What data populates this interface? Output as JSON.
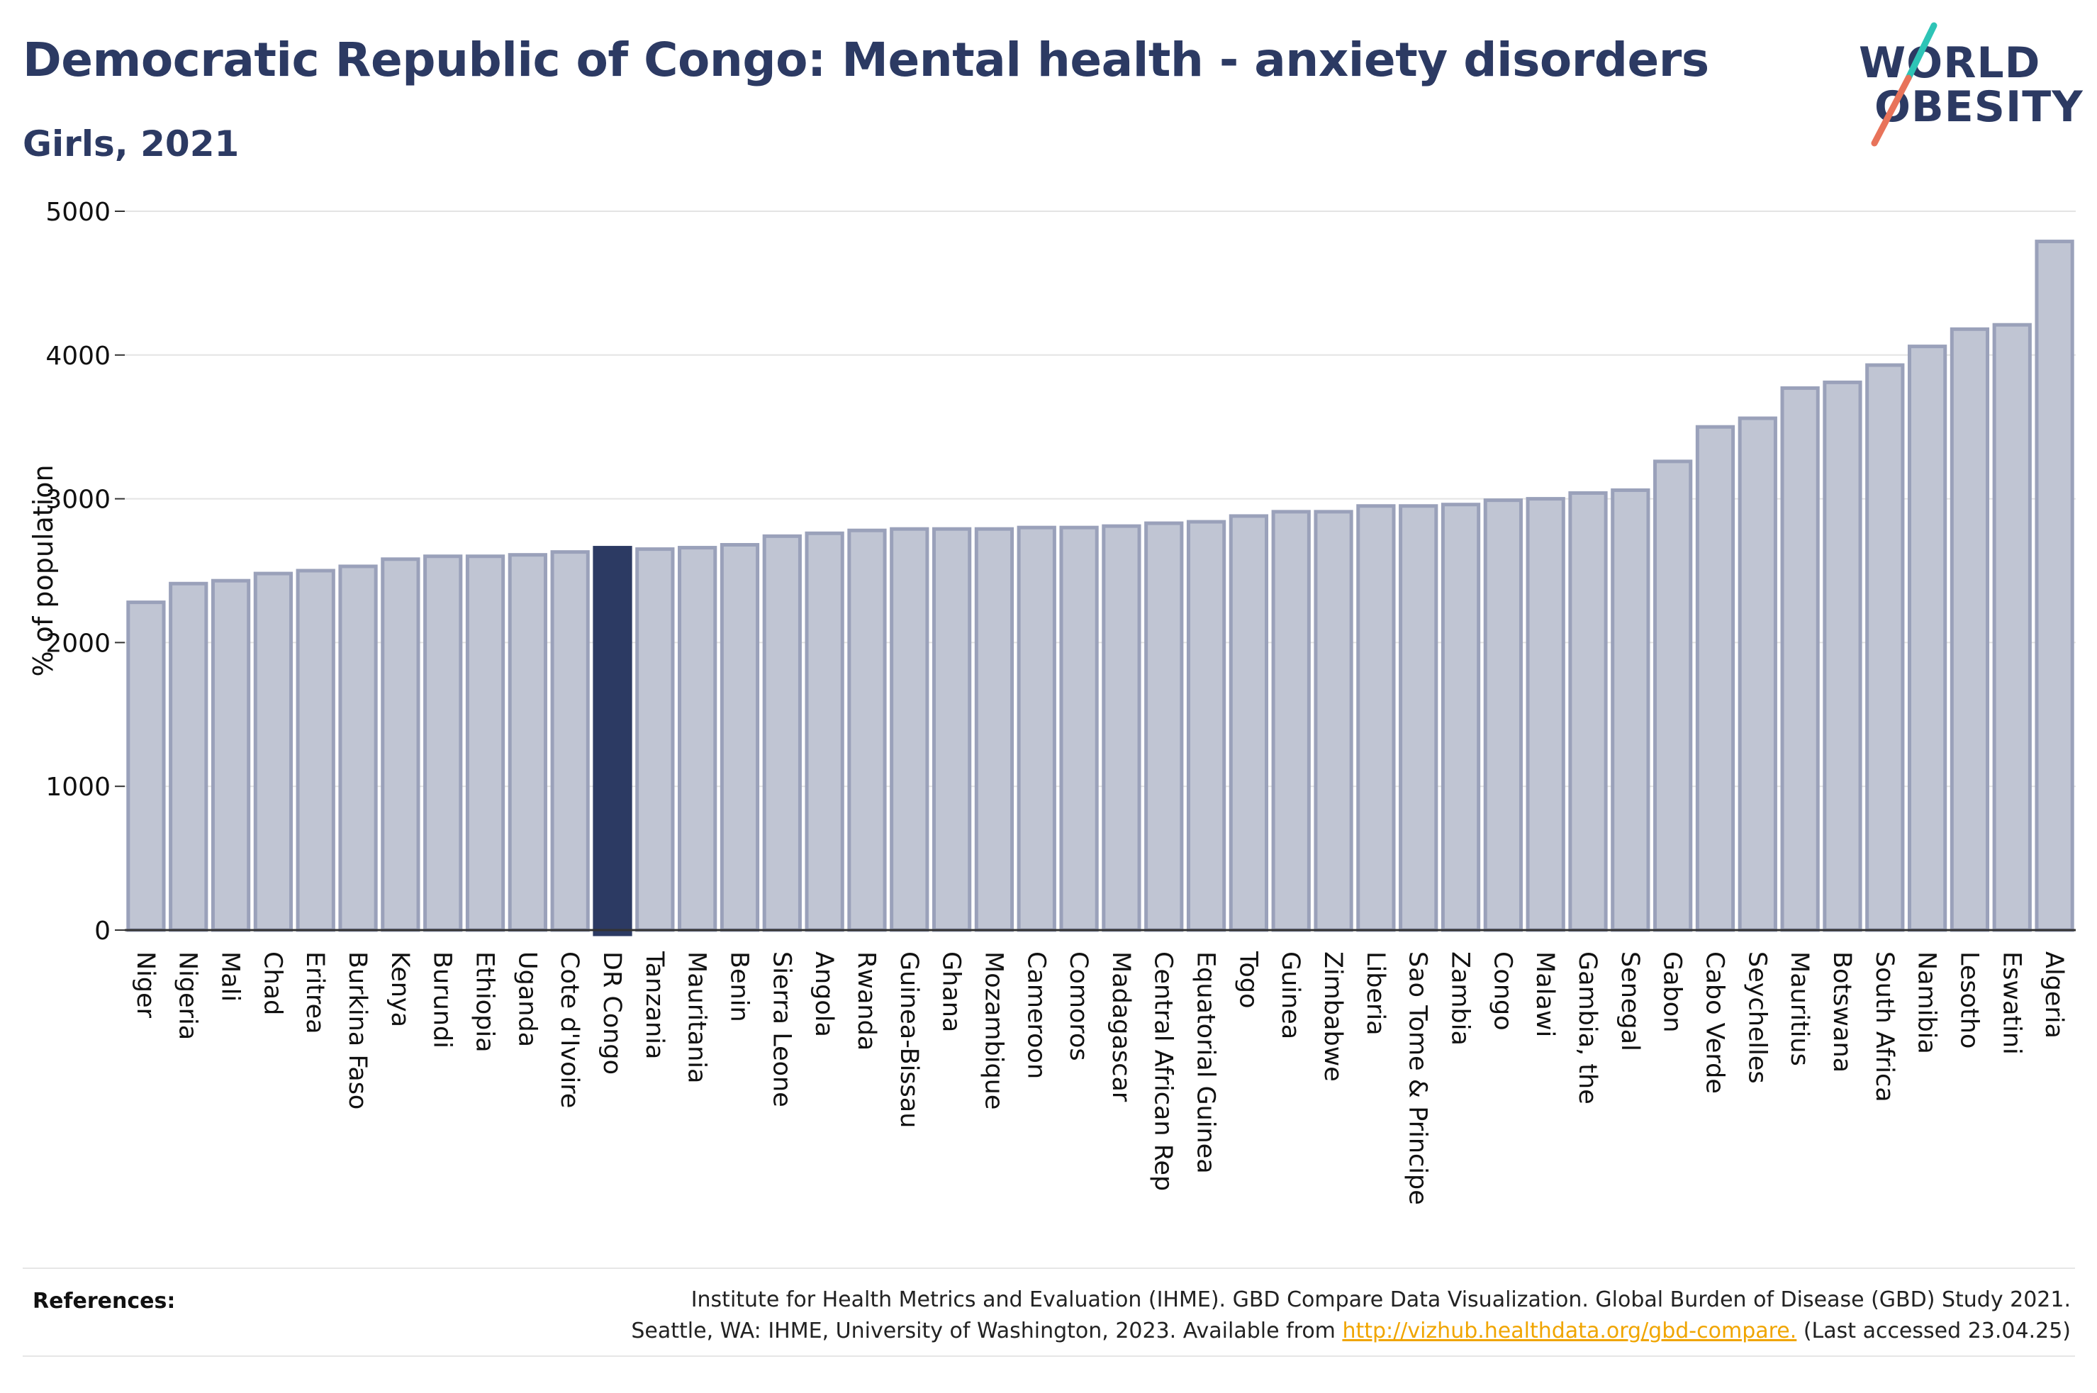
{
  "header": {
    "title": "Democratic Republic of Congo: Mental health - anxiety disorders",
    "subtitle": "Girls, 2021"
  },
  "logo": {
    "line1": "WORLD",
    "line2": "OBESITY",
    "accent_colors": [
      "#2ec4b6",
      "#e8735a"
    ]
  },
  "chart_data": {
    "type": "bar",
    "title": "Democratic Republic of Congo: Mental health - anxiety disorders",
    "subtitle": "Girls, 2021",
    "xlabel": "",
    "ylabel": "% of population",
    "ylim": [
      0,
      5000
    ],
    "yticks": [
      0,
      1000,
      2000,
      3000,
      4000,
      5000
    ],
    "grid": true,
    "highlight": "DR Congo",
    "colors": {
      "bar": "#c0c5d3",
      "bar_border": "#9aa1ba",
      "highlight": "#2c3a63"
    },
    "categories": [
      "Niger",
      "Nigeria",
      "Mali",
      "Chad",
      "Eritrea",
      "Burkina Faso",
      "Kenya",
      "Burundi",
      "Ethiopia",
      "Uganda",
      "Cote d'Ivoire",
      "DR Congo",
      "Tanzania",
      "Mauritania",
      "Benin",
      "Sierra Leone",
      "Angola",
      "Rwanda",
      "Guinea-Bissau",
      "Ghana",
      "Mozambique",
      "Cameroon",
      "Comoros",
      "Madagascar",
      "Central African Rep",
      "Equatorial Guinea",
      "Togo",
      "Guinea",
      "Zimbabwe",
      "Liberia",
      "Sao Tome & Principe",
      "Zambia",
      "Congo",
      "Malawi",
      "Gambia, the",
      "Senegal",
      "Gabon",
      "Cabo Verde",
      "Seychelles",
      "Mauritius",
      "Botswana",
      "South Africa",
      "Namibia",
      "Lesotho",
      "Eswatini",
      "Algeria"
    ],
    "values": [
      2280,
      2410,
      2430,
      2480,
      2500,
      2530,
      2580,
      2600,
      2600,
      2610,
      2630,
      2660,
      2650,
      2660,
      2680,
      2740,
      2760,
      2780,
      2790,
      2790,
      2790,
      2800,
      2800,
      2810,
      2830,
      2840,
      2880,
      2910,
      2910,
      2950,
      2950,
      2960,
      2990,
      3000,
      3040,
      3060,
      3260,
      3500,
      3560,
      3770,
      3810,
      3930,
      4060,
      4180,
      4210,
      4790
    ]
  },
  "references": {
    "label": "References:",
    "line1": "Institute for Health Metrics and Evaluation (IHME). GBD Compare Data Visualization. Global Burden of Disease (GBD) Study 2021.",
    "line2_prefix": "Seattle, WA: IHME, University of Washington, 2023. Available from ",
    "link": "http://vizhub.healthdata.org/gbd-compare.",
    "line2_suffix": " (Last accessed 23.04.25)"
  }
}
